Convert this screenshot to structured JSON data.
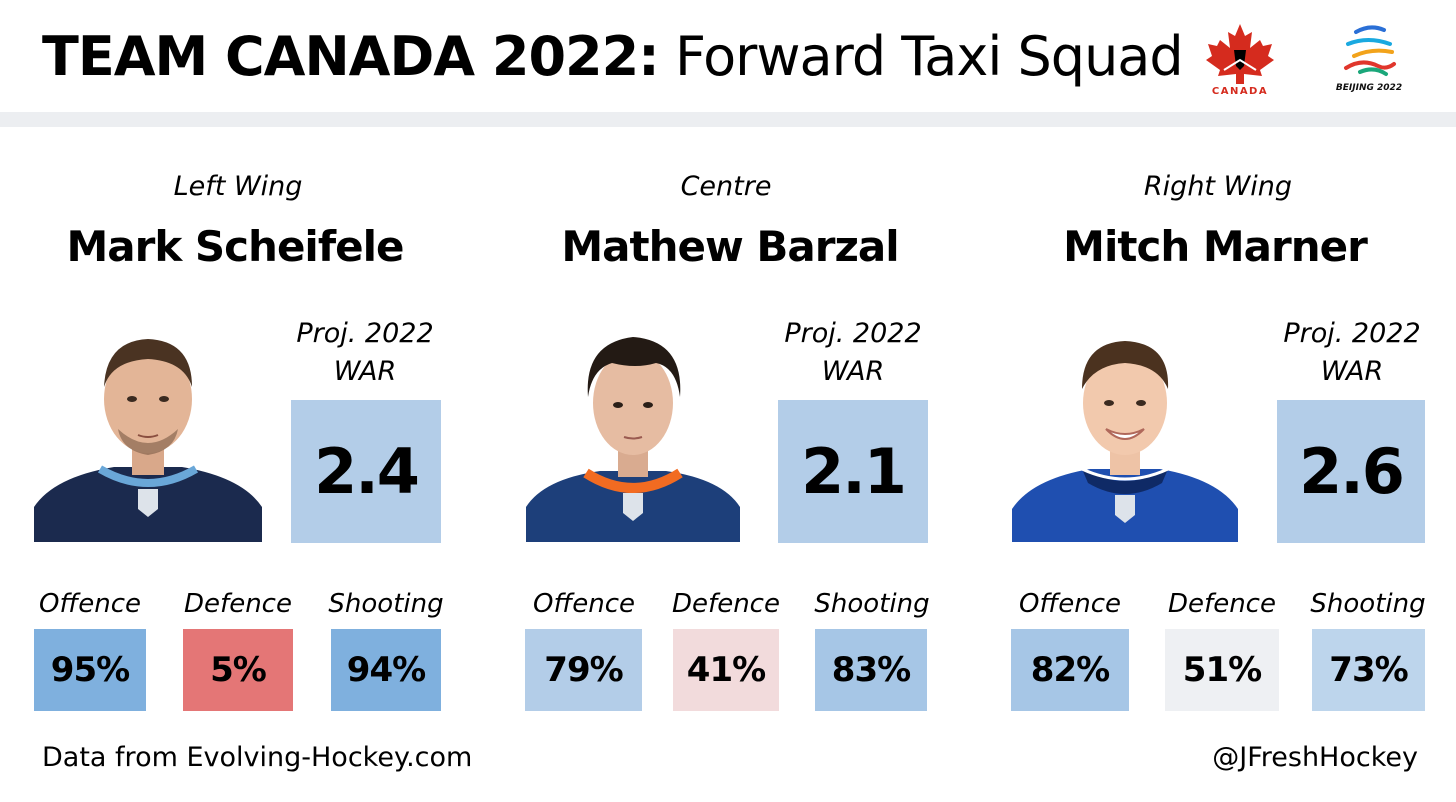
{
  "header": {
    "title_bold": "TEAM CANADA 2022:",
    "title_light": "Forward Taxi Squad",
    "logos": [
      {
        "icon": "hockey-canada-maple-leaf-logo",
        "text": "CANADA",
        "color": "#d52b1e"
      },
      {
        "icon": "beijing-2022-emblem",
        "text": "BEIJING 2022"
      }
    ]
  },
  "war_label_line1": "Proj. 2022",
  "war_label_line2": "WAR",
  "stat_labels": {
    "offence": "Offence",
    "defence": "Defence",
    "shooting": "Shooting"
  },
  "players": [
    {
      "position": "Left Wing",
      "name": "Mark Scheifele",
      "war": "2.4",
      "jersey": {
        "body": "#1b2a4e",
        "trim": "#6aa7d8"
      },
      "stats": {
        "offence": {
          "value": "95%",
          "color": "#7fb0de"
        },
        "defence": {
          "value": "5%",
          "color": "#e47676"
        },
        "shooting": {
          "value": "94%",
          "color": "#7fb0de"
        }
      }
    },
    {
      "position": "Centre",
      "name": "Mathew Barzal",
      "war": "2.1",
      "jersey": {
        "body": "#1d3f7a",
        "trim": "#f26b21"
      },
      "stats": {
        "offence": {
          "value": "79%",
          "color": "#b3cde8"
        },
        "defence": {
          "value": "41%",
          "color": "#f2dbdc"
        },
        "shooting": {
          "value": "83%",
          "color": "#a6c6e6"
        }
      }
    },
    {
      "position": "Right Wing",
      "name": "Mitch Marner",
      "war": "2.6",
      "jersey": {
        "body": "#1f4fb0",
        "trim": "#ffffff"
      },
      "stats": {
        "offence": {
          "value": "82%",
          "color": "#a6c6e6"
        },
        "defence": {
          "value": "51%",
          "color": "#eef0f3"
        },
        "shooting": {
          "value": "73%",
          "color": "#bdd5ec"
        }
      }
    }
  ],
  "footer": {
    "source": "Data from Evolving-Hockey.com",
    "handle": "@JFreshHockey"
  }
}
